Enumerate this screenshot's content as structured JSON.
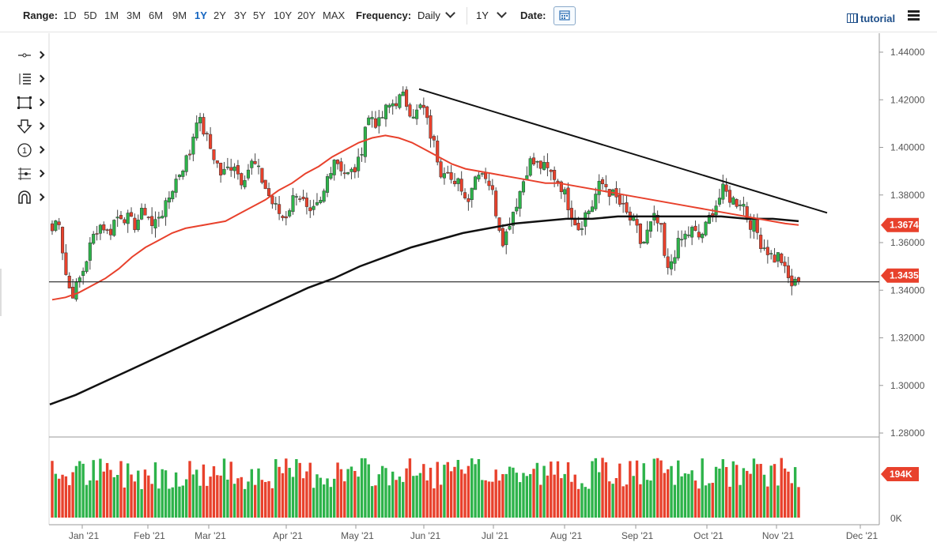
{
  "toolbar": {
    "range_label": "Range:",
    "ranges": [
      "1D",
      "5D",
      "1M",
      "3M",
      "6M",
      "9M",
      "1Y",
      "2Y",
      "3Y",
      "5Y",
      "10Y",
      "20Y",
      "MAX"
    ],
    "active_range": "1Y",
    "frequency_label": "Frequency:",
    "frequency_value": "Daily",
    "period_value": "1Y",
    "date_label": "Date:",
    "tutorial_label": "tutorial"
  },
  "side_tools": [
    "crosshair-tool-icon",
    "line-tool-icon",
    "rectangle-tool-icon",
    "arrow-down-tool-icon",
    "number-marker-tool-icon",
    "fibonacci-tool-icon",
    "magnet-tool-icon"
  ],
  "colors": {
    "up": "#2db34a",
    "down": "#e8412c",
    "ma_fast": "#e8412c",
    "ma_slow": "#111111",
    "price_badge": "#e8412c"
  },
  "chart_data": {
    "type": "candlestick",
    "x_tick_labels": [
      "Jan '21",
      "Feb '21",
      "Mar '21",
      "Apr '21",
      "May '21",
      "Jun '21",
      "Jul '21",
      "Aug '21",
      "Sep '21",
      "Oct '21",
      "Nov '21",
      "Dec '21"
    ],
    "y_ticks": [
      1.28,
      1.3,
      1.32,
      1.34,
      1.36,
      1.38,
      1.4,
      1.42,
      1.44
    ],
    "y_tick_labels": [
      "1.28000",
      "1.30000",
      "1.32000",
      "1.34000",
      "1.36000",
      "1.38000",
      "1.40000",
      "1.42000",
      "1.44000"
    ],
    "ylim": [
      1.28,
      1.445
    ],
    "close_path": [
      1.365,
      1.372,
      1.349,
      1.338,
      1.342,
      1.349,
      1.358,
      1.366,
      1.368,
      1.363,
      1.37,
      1.372,
      1.37,
      1.367,
      1.371,
      1.374,
      1.366,
      1.372,
      1.374,
      1.382,
      1.388,
      1.393,
      1.398,
      1.413,
      1.408,
      1.401,
      1.395,
      1.388,
      1.391,
      1.394,
      1.386,
      1.39,
      1.394,
      1.389,
      1.383,
      1.377,
      1.373,
      1.37,
      1.376,
      1.382,
      1.377,
      1.37,
      1.374,
      1.377,
      1.389,
      1.396,
      1.392,
      1.388,
      1.39,
      1.394,
      1.411,
      1.413,
      1.409,
      1.415,
      1.418,
      1.42,
      1.421,
      1.416,
      1.414,
      1.418,
      1.408,
      1.4,
      1.39,
      1.393,
      1.382,
      1.386,
      1.377,
      1.385,
      1.391,
      1.389,
      1.383,
      1.37,
      1.36,
      1.37,
      1.377,
      1.385,
      1.394,
      1.393,
      1.392,
      1.39,
      1.388,
      1.385,
      1.378,
      1.371,
      1.366,
      1.372,
      1.375,
      1.383,
      1.385,
      1.381,
      1.378,
      1.374,
      1.37,
      1.367,
      1.358,
      1.365,
      1.37,
      1.366,
      1.346,
      1.355,
      1.36,
      1.363,
      1.365,
      1.362,
      1.365,
      1.372,
      1.377,
      1.382,
      1.379,
      1.377,
      1.378,
      1.369,
      1.367,
      1.36,
      1.357,
      1.353,
      1.355,
      1.346,
      1.342,
      1.3435
    ],
    "ma_fast_path": [
      1.336,
      1.337,
      1.339,
      1.342,
      1.345,
      1.349,
      1.354,
      1.358,
      1.361,
      1.364,
      1.366,
      1.367,
      1.368,
      1.369,
      1.372,
      1.375,
      1.378,
      1.382,
      1.385,
      1.389,
      1.392,
      1.396,
      1.399,
      1.402,
      1.404,
      1.405,
      1.404,
      1.402,
      1.399,
      1.396,
      1.393,
      1.391,
      1.39,
      1.389,
      1.388,
      1.387,
      1.386,
      1.385,
      1.385,
      1.384,
      1.383,
      1.382,
      1.381,
      1.38,
      1.379,
      1.378,
      1.377,
      1.376,
      1.375,
      1.374,
      1.373,
      1.372,
      1.371,
      1.37,
      1.369,
      1.368,
      1.3674
    ],
    "ma_slow_path": [
      1.292,
      1.296,
      1.301,
      1.306,
      1.311,
      1.316,
      1.321,
      1.326,
      1.331,
      1.336,
      1.341,
      1.345,
      1.35,
      1.354,
      1.358,
      1.361,
      1.364,
      1.366,
      1.368,
      1.369,
      1.37,
      1.37,
      1.371,
      1.371,
      1.371,
      1.371,
      1.371,
      1.37,
      1.37,
      1.369
    ],
    "horizontal_line": 1.3435,
    "trendline": {
      "from": 1.4245,
      "to": 1.3725
    },
    "last_price_label": "1.34355",
    "ma_label": "1.36742",
    "volume_label": "194K",
    "volume_axis_min_label": "0K"
  }
}
